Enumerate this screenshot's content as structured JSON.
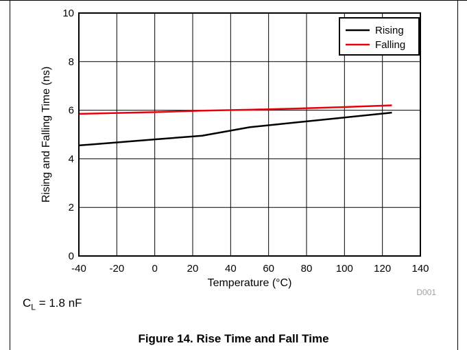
{
  "chart_data": {
    "type": "line",
    "xlabel": "Temperature (°C)",
    "ylabel": "Rising and Falling Time (ns)",
    "xlim": [
      -40,
      140
    ],
    "ylim": [
      0,
      10
    ],
    "xticks": [
      -40,
      -20,
      0,
      20,
      40,
      60,
      80,
      100,
      120,
      140
    ],
    "yticks": [
      0,
      2,
      4,
      6,
      8,
      10
    ],
    "grid": true,
    "legend_position": "top-right",
    "series": [
      {
        "name": "Rising",
        "color": "#000000",
        "x": [
          -40,
          0,
          25,
          50,
          75,
          100,
          125
        ],
        "y": [
          4.55,
          4.8,
          4.95,
          5.3,
          5.5,
          5.7,
          5.9
        ]
      },
      {
        "name": "Falling",
        "color": "#e8000b",
        "x": [
          -40,
          0,
          25,
          50,
          75,
          100,
          125
        ],
        "y": [
          5.85,
          5.92,
          5.98,
          6.02,
          6.07,
          6.13,
          6.2
        ]
      }
    ],
    "annotation": "D001"
  },
  "load_note": {
    "prefix": "C",
    "sub": "L",
    "suffix": " = 1.8 nF"
  },
  "caption": "Figure 14. Rise Time and Fall Time"
}
